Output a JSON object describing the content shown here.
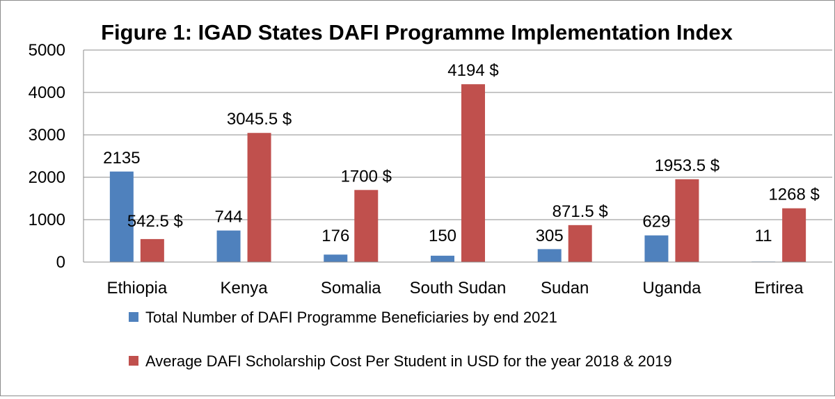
{
  "chart_data": {
    "type": "bar",
    "title": "Figure 1: IGAD States DAFI Programme Implementation Index",
    "categories": [
      "Ethiopia",
      "Kenya",
      "Somalia",
      "South Sudan",
      "Sudan",
      "Uganda",
      "Ertirea"
    ],
    "series": [
      {
        "name": "Total Number of DAFI Programme Beneficiaries by end 2021",
        "color": "#4f81bd",
        "values": [
          2135,
          744,
          176,
          150,
          305,
          629,
          11
        ],
        "labels": [
          "2135",
          "744",
          "176",
          "150",
          "305",
          "629",
          "11"
        ]
      },
      {
        "name": "Average DAFI Scholarship Cost Per Student in USD for the year 2018 & 2019",
        "color": "#c0504d",
        "values": [
          542.5,
          3045.5,
          1700,
          4194,
          871.5,
          1953.5,
          1268
        ],
        "labels": [
          "542.5 $",
          "3045.5 $",
          "1700 $",
          "4194 $",
          "871.5 $",
          "1953.5 $",
          "1268 $"
        ]
      }
    ],
    "ylim": [
      0,
      5000
    ],
    "yticks": [
      0,
      1000,
      2000,
      3000,
      4000,
      5000
    ],
    "grid": true,
    "legend_position": "bottom"
  }
}
